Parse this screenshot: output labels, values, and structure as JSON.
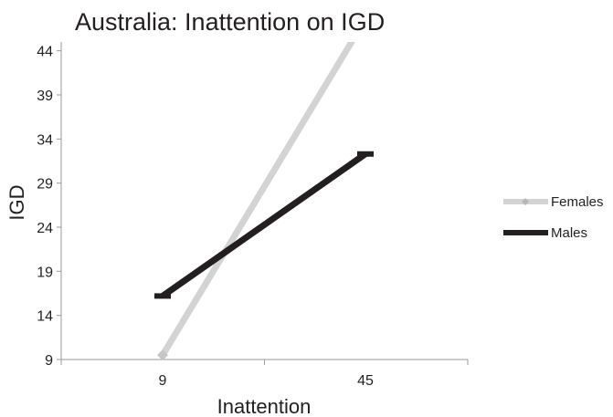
{
  "chart_data": {
    "type": "line",
    "title": "Australia: Inattention on IGD",
    "xlabel": "Inattention",
    "ylabel": "IGD",
    "categories": [
      "9",
      "45"
    ],
    "x_ticks": [
      "9",
      "45"
    ],
    "y_ticks": [
      "9",
      "14",
      "19",
      "24",
      "29",
      "34",
      "39",
      "44"
    ],
    "ylim": [
      9,
      45
    ],
    "grid": false,
    "legend_position": "right",
    "series": [
      {
        "name": "Females",
        "values": [
          9.5,
          47.6
        ],
        "color": "#d3d3d3",
        "marker": "diamond"
      },
      {
        "name": "Males",
        "values": [
          16.2,
          32.3
        ],
        "color": "#231f20",
        "marker": "dash"
      }
    ]
  }
}
